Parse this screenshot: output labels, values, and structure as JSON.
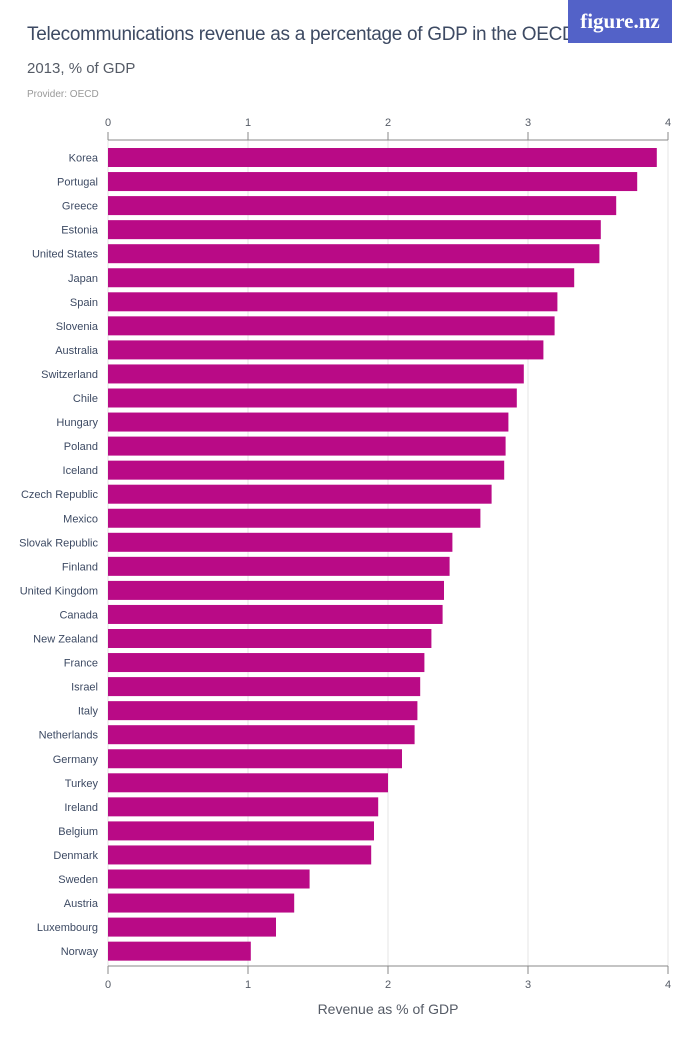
{
  "header": {
    "title": "Telecommunications revenue as a percentage of GDP in the OECD",
    "subtitle": "2013, % of GDP",
    "provider": "Provider: OECD",
    "logo": "figure.nz"
  },
  "colors": {
    "bar": "#b90a86",
    "logo_bg": "#5362c8",
    "title": "#3d4a63"
  },
  "chart_data": {
    "type": "bar",
    "orientation": "horizontal",
    "title": "Telecommunications revenue as a percentage of GDP in the OECD",
    "subtitle": "2013, % of GDP",
    "xlabel": "Revenue as % of GDP",
    "ylabel": "",
    "xlim": [
      0,
      4
    ],
    "ticks": [
      0,
      1,
      2,
      3,
      4
    ],
    "grid": true,
    "categories": [
      "Korea",
      "Portugal",
      "Greece",
      "Estonia",
      "United States",
      "Japan",
      "Spain",
      "Slovenia",
      "Australia",
      "Switzerland",
      "Chile",
      "Hungary",
      "Poland",
      "Iceland",
      "Czech Republic",
      "Mexico",
      "Slovak Republic",
      "Finland",
      "United Kingdom",
      "Canada",
      "New Zealand",
      "France",
      "Israel",
      "Italy",
      "Netherlands",
      "Germany",
      "Turkey",
      "Ireland",
      "Belgium",
      "Denmark",
      "Sweden",
      "Austria",
      "Luxembourg",
      "Norway"
    ],
    "values": [
      3.92,
      3.78,
      3.63,
      3.52,
      3.51,
      3.33,
      3.21,
      3.19,
      3.11,
      2.97,
      2.92,
      2.86,
      2.84,
      2.83,
      2.74,
      2.66,
      2.46,
      2.44,
      2.4,
      2.39,
      2.31,
      2.26,
      2.23,
      2.21,
      2.19,
      2.1,
      2.0,
      1.93,
      1.9,
      1.88,
      1.44,
      1.33,
      1.2,
      1.02
    ]
  }
}
